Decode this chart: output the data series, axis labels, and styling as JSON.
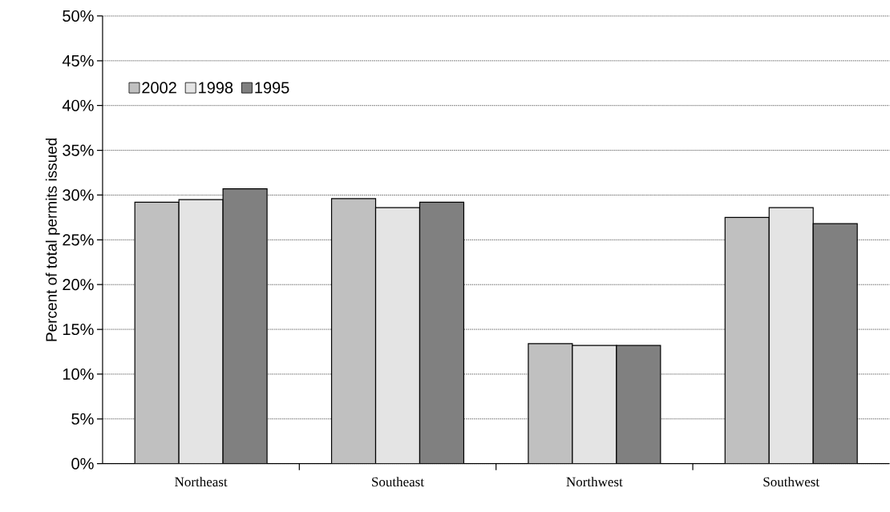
{
  "chart_data": {
    "type": "bar",
    "ylabel": "Percent of total permits issued",
    "categories": [
      "Northeast",
      "Southeast",
      "Northwest",
      "Southwest"
    ],
    "series": [
      {
        "name": "2002",
        "color": "#c0c0c0",
        "values": [
          29.2,
          29.6,
          13.4,
          27.5
        ]
      },
      {
        "name": "1998",
        "color": "#e4e4e4",
        "values": [
          29.5,
          28.6,
          13.2,
          28.6
        ]
      },
      {
        "name": "1995",
        "color": "#808080",
        "values": [
          30.7,
          29.2,
          13.2,
          26.8
        ]
      }
    ],
    "ylim": [
      0,
      50
    ],
    "yticks": [
      {
        "value": 0,
        "label": "0%"
      },
      {
        "value": 5,
        "label": "5%"
      },
      {
        "value": 10,
        "label": "10%"
      },
      {
        "value": 15,
        "label": "15%"
      },
      {
        "value": 20,
        "label": "20%"
      },
      {
        "value": 25,
        "label": "25%"
      },
      {
        "value": 30,
        "label": "30%"
      },
      {
        "value": 35,
        "label": "35%"
      },
      {
        "value": 40,
        "label": "40%"
      },
      {
        "value": 45,
        "label": "45%"
      },
      {
        "value": 50,
        "label": "50%"
      }
    ],
    "grid": "y",
    "legend": "top left"
  }
}
